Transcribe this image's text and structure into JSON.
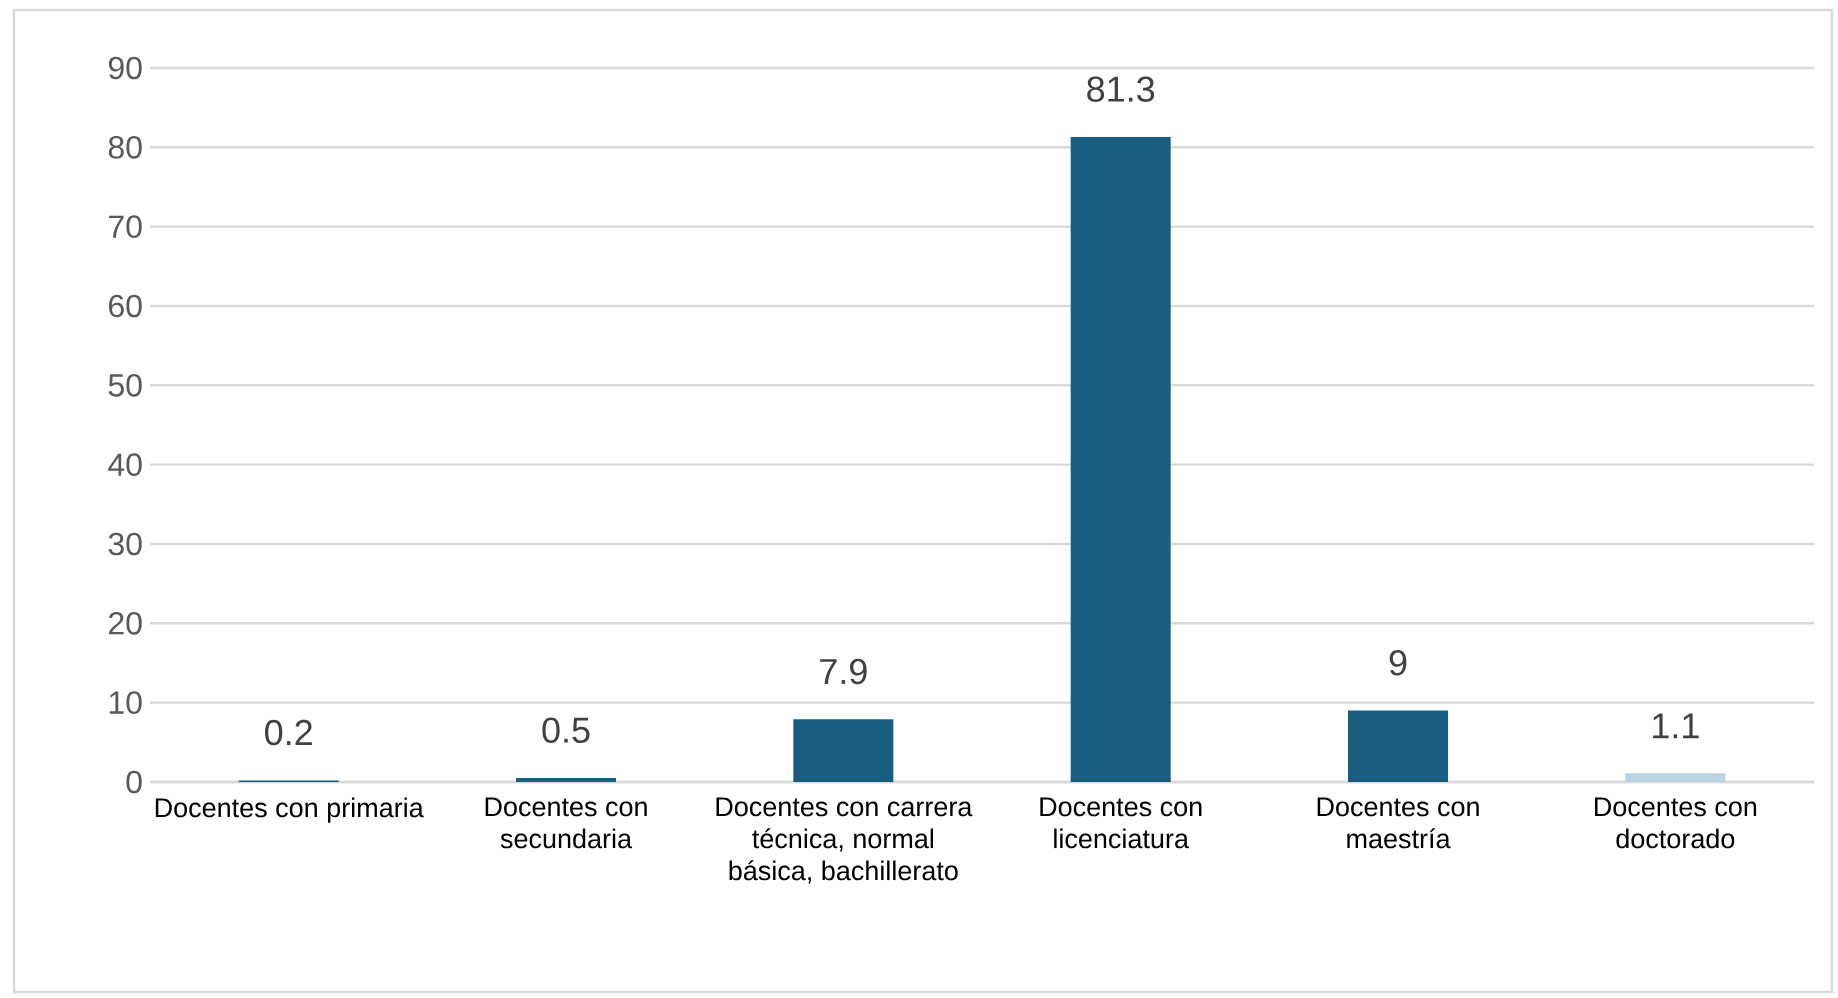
{
  "chart_data": {
    "type": "bar",
    "categories": [
      "Docentes con primaria",
      "Docentes con secundaria",
      "Docentes con carrera técnica, normal básica, bachillerato",
      "Docentes con licenciatura",
      "Docentes con maestría",
      "Docentes con doctorado"
    ],
    "values": [
      0.2,
      0.5,
      7.9,
      81.3,
      9,
      1.1
    ],
    "colors": [
      "#175e80",
      "#175e80",
      "#175e80",
      "#175e80",
      "#175e80",
      "#b9d4e3"
    ],
    "ylim": [
      0,
      90
    ],
    "yticks": [
      0,
      10,
      20,
      30,
      40,
      50,
      60,
      70,
      80,
      90
    ],
    "grid": "y",
    "data_labels": true
  }
}
